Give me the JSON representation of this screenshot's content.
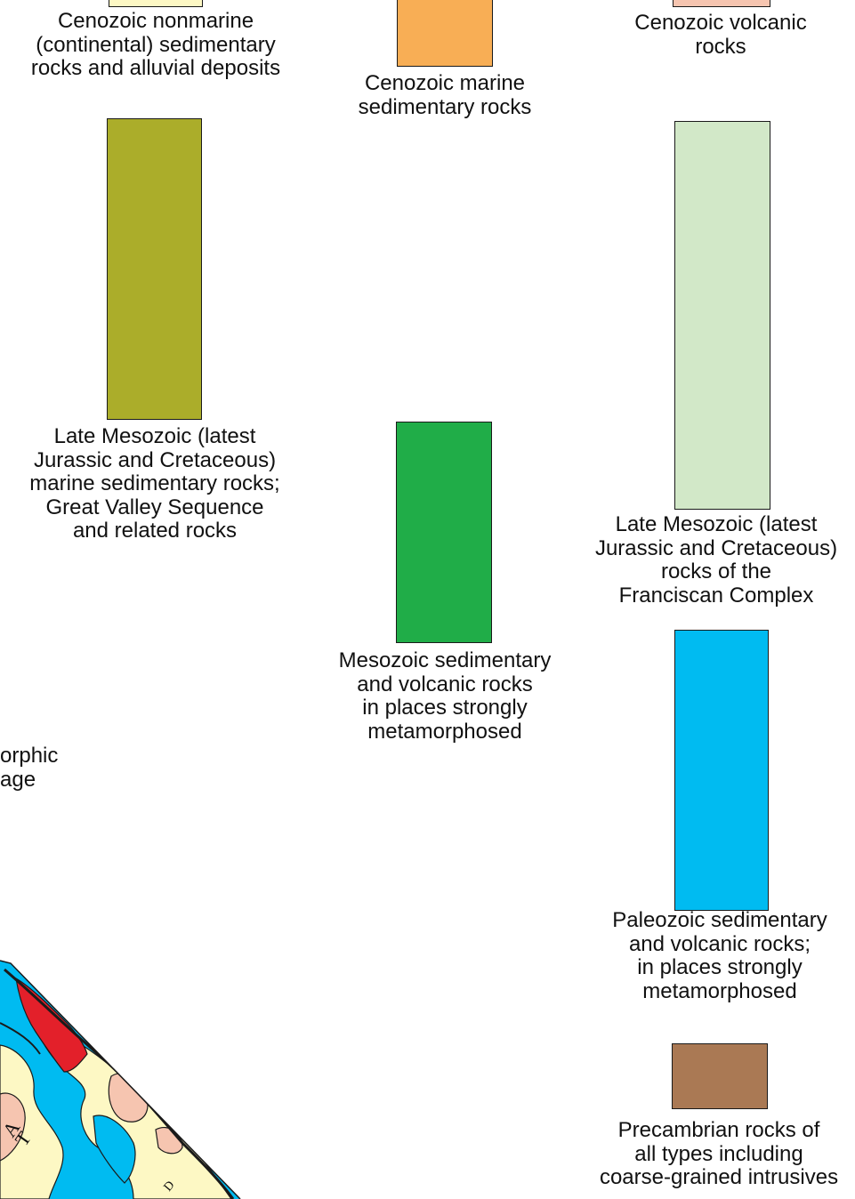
{
  "legend": {
    "units": [
      {
        "id": "cenozoic-nonmarine",
        "color": "#fdf8c4",
        "lines": [
          "Cenozoic nonmarine",
          "(continental) sedimentary",
          "rocks and alluvial deposits"
        ]
      },
      {
        "id": "cenozoic-marine",
        "color": "#f8ae55",
        "lines": [
          "Cenozoic marine",
          "sedimentary rocks"
        ]
      },
      {
        "id": "cenozoic-volcanic",
        "color": "#f6c5b0",
        "lines": [
          "Cenozoic volcanic",
          "rocks"
        ]
      },
      {
        "id": "great-valley",
        "color": "#abad2a",
        "lines": [
          "Late Mesozoic (latest",
          "Jurassic and Cretaceous)",
          "marine sedimentary rocks;",
          "Great Valley Sequence",
          "and related rocks"
        ]
      },
      {
        "id": "mesozoic-sed-volc",
        "color": "#20ad48",
        "lines": [
          "Mesozoic sedimentary",
          "and volcanic rocks",
          "in places strongly",
          "metamorphosed"
        ]
      },
      {
        "id": "franciscan",
        "color": "#d2e8c8",
        "lines": [
          "Late Mesozoic (latest",
          "Jurassic and Cretaceous)",
          "rocks of the",
          "Franciscan Complex"
        ]
      },
      {
        "id": "paleozoic",
        "color": "#00bbf1",
        "lines": [
          "Paleozoic sedimentary",
          "and volcanic rocks;",
          "in places strongly",
          "metamorphosed"
        ]
      },
      {
        "id": "precambrian",
        "color": "#aa7954",
        "lines": [
          "Precambrian rocks of",
          "all types including",
          "coarse-grained intrusives"
        ]
      }
    ],
    "partial_label_lines": [
      "orphic",
      "age"
    ]
  },
  "map_fragment": {
    "colors": {
      "nonmarine": "#fdf8c4",
      "volcanic": "#f6c5b0",
      "paleozoic": "#00bbf1",
      "red_unit": "#e3202a",
      "line": "#1a1a1a"
    },
    "visible_letters": [
      "A",
      "T",
      "D"
    ]
  }
}
